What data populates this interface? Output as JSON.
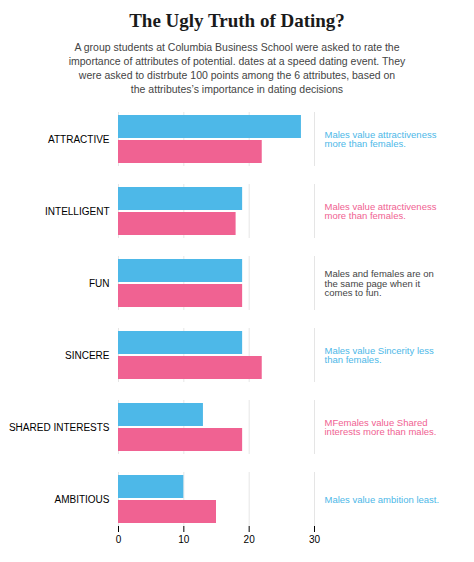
{
  "chart_data": {
    "type": "bar",
    "orientation": "horizontal",
    "title": "The Ugly Truth of Dating?",
    "subtitle": [
      "A group students at Columbia Business School were asked to rate the",
      "importance of attributes of potential. dates at a speed dating event. They",
      "were asked to distrbute 100 points among the 6 attributes, based on",
      "the attributes’s importance in dating decisions"
    ],
    "categories": [
      "ATTRACTIVE",
      "INTELLIGENT",
      "FUN",
      "SINCERE",
      "SHARED INTERESTS",
      "AMBITIOUS"
    ],
    "series": [
      {
        "color": "#4DB8E8",
        "values": [
          28,
          19,
          19,
          19,
          13,
          10
        ]
      },
      {
        "color": "#F06292",
        "values": [
          22,
          18,
          19,
          22,
          19,
          15
        ]
      }
    ],
    "xlim": [
      0,
      30
    ],
    "xticks": [
      0,
      10,
      20,
      30
    ],
    "grid": true,
    "annotations": [
      {
        "text": "Males value attractiveness\nmore than females.",
        "color": "#4DB8E8"
      },
      {
        "text": "Males value attractiveness\nmore than females.",
        "color": "#F06292"
      },
      {
        "text": "Males and females are on\nthe same page when it\ncomes to fun.",
        "color": "#444444"
      },
      {
        "text": "Males value Sincerity less\nthan females.",
        "color": "#4DB8E8"
      },
      {
        "text": "MFemales value Shared\ninterests more than males.",
        "color": "#F06292"
      },
      {
        "text": "Males value ambition least.",
        "color": "#4DB8E8"
      }
    ]
  }
}
